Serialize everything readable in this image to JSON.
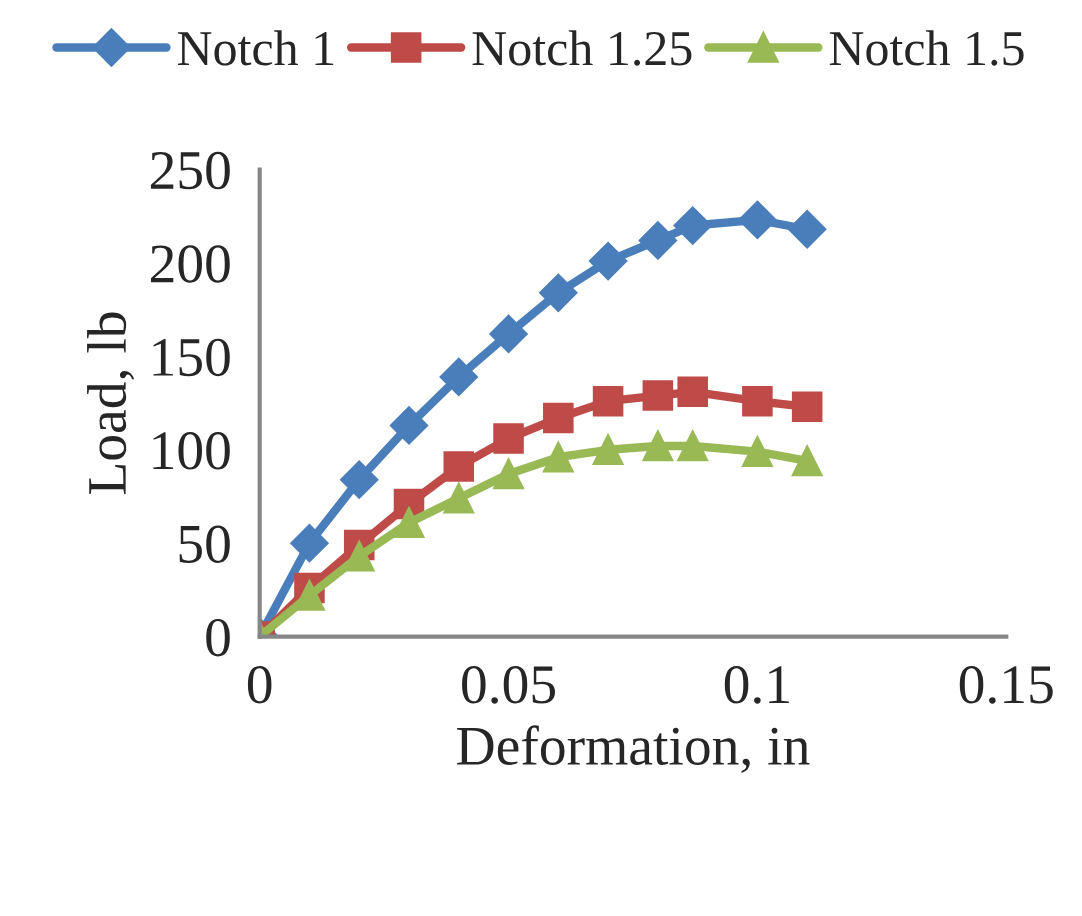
{
  "chart_data": {
    "type": "line",
    "xlabel": "Deformation, in",
    "ylabel": "Load, lb",
    "x": [
      0,
      0.01,
      0.02,
      0.03,
      0.04,
      0.05,
      0.06,
      0.07,
      0.08,
      0.087,
      0.1,
      0.11
    ],
    "series": [
      {
        "name": "Notch 1",
        "color": "#4a7ebb",
        "marker": "diamond",
        "values": [
          0,
          50,
          84,
          113,
          139,
          162,
          184,
          201,
          212,
          220,
          223,
          218
        ]
      },
      {
        "name": "Notch 1.25",
        "color": "#be4b48",
        "marker": "square",
        "values": [
          0,
          26,
          49,
          71,
          91,
          106,
          117,
          126,
          129,
          131,
          126,
          123
        ]
      },
      {
        "name": "Notch 1.5",
        "color": "#98b954",
        "marker": "triangle",
        "values": [
          0,
          22,
          43,
          61,
          74,
          87,
          96,
          100,
          102,
          102,
          99,
          94
        ]
      }
    ],
    "xlim": [
      0,
      0.15
    ],
    "xticks": [
      0,
      0.05,
      0.1,
      0.15
    ],
    "ylim": [
      0,
      250
    ],
    "yticks": [
      0,
      50,
      100,
      150,
      200,
      250
    ],
    "grid": false,
    "legend": "top",
    "line_style": "solid"
  }
}
